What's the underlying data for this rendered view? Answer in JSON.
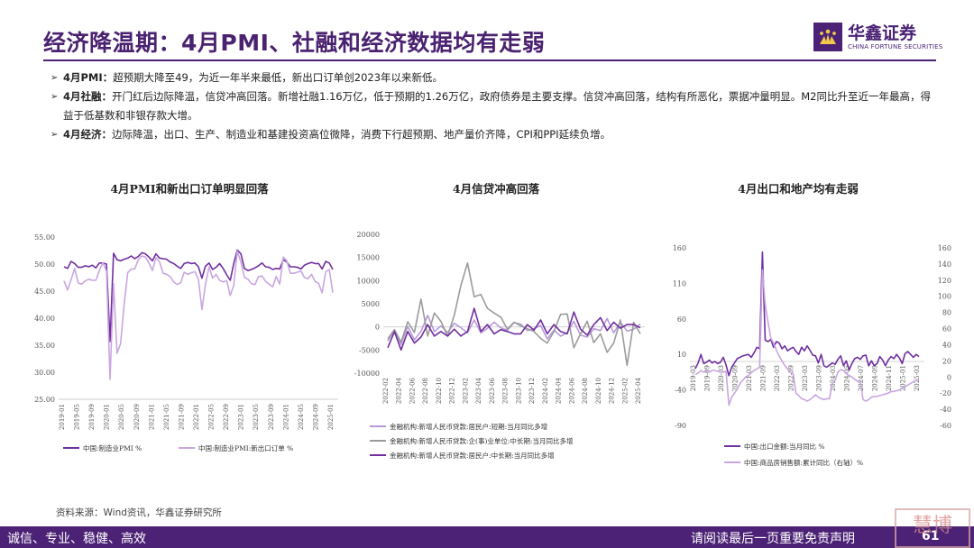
{
  "page": {
    "title": "经济降温期：4月PMI、社融和经济数据均有走弱",
    "logo_cn": "华鑫证券",
    "logo_en": "CHINA FORTUNE SECURITIES",
    "source": "资料来源：Wind资讯，华鑫证券研究所",
    "footer_left": "诚信、专业、稳健、高效",
    "footer_right": "请阅读最后一页重要免责声明",
    "page_number": "61",
    "watermark": "慧博",
    "accent_color": "#4b2275"
  },
  "bullets": [
    {
      "head": "4月PMI：",
      "text": "超预期大降至49，为近一年半来最低，新出口订单创2023年以来新低。"
    },
    {
      "head": "4月社融：",
      "text": "开门红后边际降温，信贷冲高回落。新增社融1.16万亿，低于预期的1.26万亿，政府债券是主要支撑。信贷冲高回落，结构有所恶化，票据冲量明显。M2同比升至近一年最高，得益于低基数和非银存款大增。"
    },
    {
      "head": "4月经济：",
      "text": "边际降温，出口、生产、制造业和基建投资高位微降，消费下行超预期、地产量价齐降，CPI和PPI延续负增。"
    }
  ],
  "chart_data": [
    {
      "type": "line",
      "title": "4月PMI和新出口订单明显回落",
      "x_labels": [
        "2019-01",
        "2019-05",
        "2019-09",
        "2020-01",
        "2020-05",
        "2020-09",
        "2021-01",
        "2021-05",
        "2021-09",
        "2022-01",
        "2022-05",
        "2022-09",
        "2023-01",
        "2023-05",
        "2023-09",
        "2024-01",
        "2024-05",
        "2024-09",
        "2025-01"
      ],
      "yticks": [
        "55.00",
        "50.00",
        "45.00",
        "40.00",
        "35.00",
        "30.00",
        "25.00"
      ],
      "ylim": [
        25,
        55
      ],
      "series": [
        {
          "name": "中国:制造业PMI %",
          "color": "#7030a0",
          "values": [
            49.5,
            49.2,
            50.5,
            50.1,
            49.4,
            49.4,
            49.7,
            49.5,
            49.8,
            49.3,
            50.2,
            50.2,
            50.0,
            35.7,
            52.0,
            50.8,
            50.6,
            50.9,
            51.1,
            51.5,
            51.0,
            51.4,
            52.1,
            51.9,
            51.3,
            50.6,
            51.9,
            51.1,
            51.0,
            50.9,
            50.4,
            50.1,
            49.6,
            49.2,
            50.1,
            50.3,
            50.1,
            50.2,
            49.5,
            47.4,
            49.6,
            50.2,
            49.0,
            49.4,
            50.1,
            49.2,
            48.0,
            47.0,
            50.1,
            52.6,
            51.9,
            49.2,
            48.8,
            49.0,
            49.3,
            49.7,
            50.2,
            49.5,
            49.4,
            49.0,
            49.2,
            49.1,
            50.8,
            50.4,
            49.5,
            49.5,
            49.4,
            49.1,
            49.8,
            50.1,
            50.3,
            50.1,
            50.1,
            49.1,
            50.5,
            50.2,
            49.0
          ]
        },
        {
          "name": "中国:制造业PMI:新出口订单 %",
          "color": "#c9a6e0",
          "values": [
            46.9,
            45.2,
            47.1,
            49.2,
            46.5,
            46.3,
            46.9,
            47.2,
            47.0,
            47.0,
            48.8,
            50.3,
            48.7,
            28.7,
            46.4,
            33.5,
            35.3,
            42.6,
            48.4,
            49.1,
            49.1,
            50.8,
            51.5,
            51.3,
            50.2,
            48.8,
            51.2,
            50.4,
            48.3,
            48.1,
            47.7,
            46.7,
            46.2,
            46.6,
            48.5,
            48.1,
            48.4,
            48.6,
            47.2,
            41.6,
            46.2,
            49.5,
            47.4,
            48.1,
            47.0,
            46.7,
            46.9,
            44.2,
            46.1,
            52.4,
            50.4,
            47.6,
            47.2,
            46.4,
            46.2,
            47.7,
            47.8,
            46.8,
            46.3,
            45.8,
            47.7,
            46.3,
            51.3,
            50.6,
            48.3,
            48.3,
            48.5,
            48.7,
            47.5,
            47.3,
            48.1,
            46.8,
            46.4,
            44.7,
            48.6,
            49.0,
            44.7
          ]
        }
      ]
    },
    {
      "type": "line",
      "title": "4月信贷冲高回落",
      "x_labels": [
        "2022-02",
        "2022-04",
        "2022-06",
        "2022-08",
        "2022-10",
        "2022-12",
        "2023-02",
        "2023-04",
        "2023-06",
        "2023-08",
        "2023-10",
        "2023-12",
        "2024-02",
        "2024-04",
        "2024-06",
        "2024-08",
        "2024-10",
        "2024-12",
        "2025-02",
        "2025-04"
      ],
      "yticks": [
        "20000",
        "15000",
        "10000",
        "5000",
        "0",
        "-5000",
        "-10000"
      ],
      "ylim": [
        -10000,
        20000
      ],
      "series": [
        {
          "name": "金融机构:新增人民币贷款:居民户:短期:当月同比多增",
          "color": "#b79ad8",
          "values": [
            -2500,
            -600,
            -3800,
            100,
            -2800,
            -1000,
            2500,
            -1000,
            200,
            -1200,
            800,
            -200,
            -1300,
            1500,
            -1300,
            -300,
            1000,
            -200,
            -700,
            900,
            600,
            -800,
            -400,
            300,
            -2600,
            -700,
            -2000,
            -1300,
            1200,
            -1800,
            -2200,
            -400,
            -800,
            1800,
            -1300,
            1000,
            -900,
            -500,
            600
          ]
        },
        {
          "name": "金融机构:新增人民币贷款:企(事)业单位:中长期:当月同比多增",
          "color": "#9b9b9b",
          "values": [
            -3000,
            -600,
            -3300,
            1100,
            -1200,
            6000,
            -2000,
            3000,
            1200,
            -2000,
            2500,
            9000,
            13800,
            6500,
            7000,
            4000,
            3000,
            2100,
            -500,
            1000,
            200,
            -400,
            -1000,
            -2500,
            -3500,
            -1000,
            2700,
            2800,
            -4500,
            -1500,
            1200,
            -3400,
            -1500,
            -5500,
            -3500,
            1500,
            -8300,
            1000,
            -1500
          ]
        },
        {
          "name": "金融机构:新增人民币贷款:居民户:中长期:当月同比多增",
          "color": "#7030a0",
          "values": [
            -4500,
            -1000,
            -5000,
            -1000,
            -3500,
            -2200,
            500,
            -2000,
            -1000,
            -2000,
            -500,
            -2000,
            -1000,
            4000,
            -1000,
            500,
            -1500,
            -600,
            -1000,
            -1500,
            -1500,
            500,
            -700,
            1500,
            -1500,
            500,
            -1000,
            -1500,
            3200,
            -500,
            -1800,
            500,
            2000,
            -800,
            1000,
            -300,
            500,
            500,
            -200
          ]
        }
      ]
    },
    {
      "type": "line",
      "title": "4月出口和地产均有走弱",
      "x_labels": [
        "2019-03",
        "2019-09",
        "2020-03",
        "2020-09",
        "2021-03",
        "2021-09",
        "2022-03",
        "2022-09",
        "2023-03",
        "2023-09",
        "2024-03",
        "2024-05",
        "2024-07",
        "2024-09",
        "2024-11",
        "2025-01",
        "2025-03"
      ],
      "yticks_left": [
        "160",
        "110",
        "60",
        "10",
        "-40",
        "-90"
      ],
      "yticks_right": [
        "160",
        "140",
        "120",
        "100",
        "80",
        "60",
        "40",
        "20",
        "0",
        "-20",
        "-40",
        "-60"
      ],
      "ylim_left": [
        -90,
        160
      ],
      "ylim_right": [
        -60,
        160
      ],
      "series": [
        {
          "name": "中国:出口金额:当月同比 %",
          "color": "#7030a0",
          "axis": "left",
          "values": [
            -10,
            -2,
            10,
            -3,
            -1,
            2,
            -2,
            0,
            -3,
            -1,
            6,
            -5,
            -20,
            -8,
            -2,
            4,
            6,
            8,
            9,
            10,
            6,
            12,
            20,
            18,
            154,
            30,
            28,
            31,
            20,
            28,
            26,
            18,
            22,
            15,
            18,
            20,
            14,
            10,
            20,
            15,
            22,
            16,
            9,
            8,
            -2,
            10,
            -6,
            -8,
            -5,
            -2,
            -4,
            3,
            8,
            -6,
            1,
            -12,
            -3,
            4,
            6,
            3,
            8,
            9,
            -6,
            1,
            -6,
            -3,
            7,
            2,
            -6,
            2,
            7,
            4,
            10,
            5,
            -3,
            11,
            14,
            10,
            6,
            10,
            7
          ]
        },
        {
          "name": "中国:商品房销售额:累计同比（右轴）%",
          "color": "#c9a6e0",
          "axis": "right",
          "values": [
            3,
            5,
            8,
            6,
            7,
            6,
            8,
            8,
            7,
            6,
            6,
            7,
            -35,
            -25,
            -20,
            -15,
            -8,
            -4,
            0,
            2,
            5,
            8,
            10,
            12,
            133,
            90,
            68,
            48,
            42,
            33,
            26,
            20,
            14,
            10,
            6,
            4,
            -20,
            -23,
            -27,
            -28,
            -30,
            -28,
            -25,
            -22,
            -25,
            -27,
            -28,
            -27,
            -27,
            -8,
            -4,
            6,
            9,
            8,
            4,
            2,
            0,
            -3,
            -5,
            -5,
            -28,
            -30,
            -28,
            -25,
            -24,
            -24,
            -23,
            -22,
            -21,
            -20,
            -18,
            -18,
            -17,
            -16,
            -14,
            -12,
            -10,
            -8,
            -6,
            -4,
            -3
          ]
        }
      ]
    }
  ]
}
